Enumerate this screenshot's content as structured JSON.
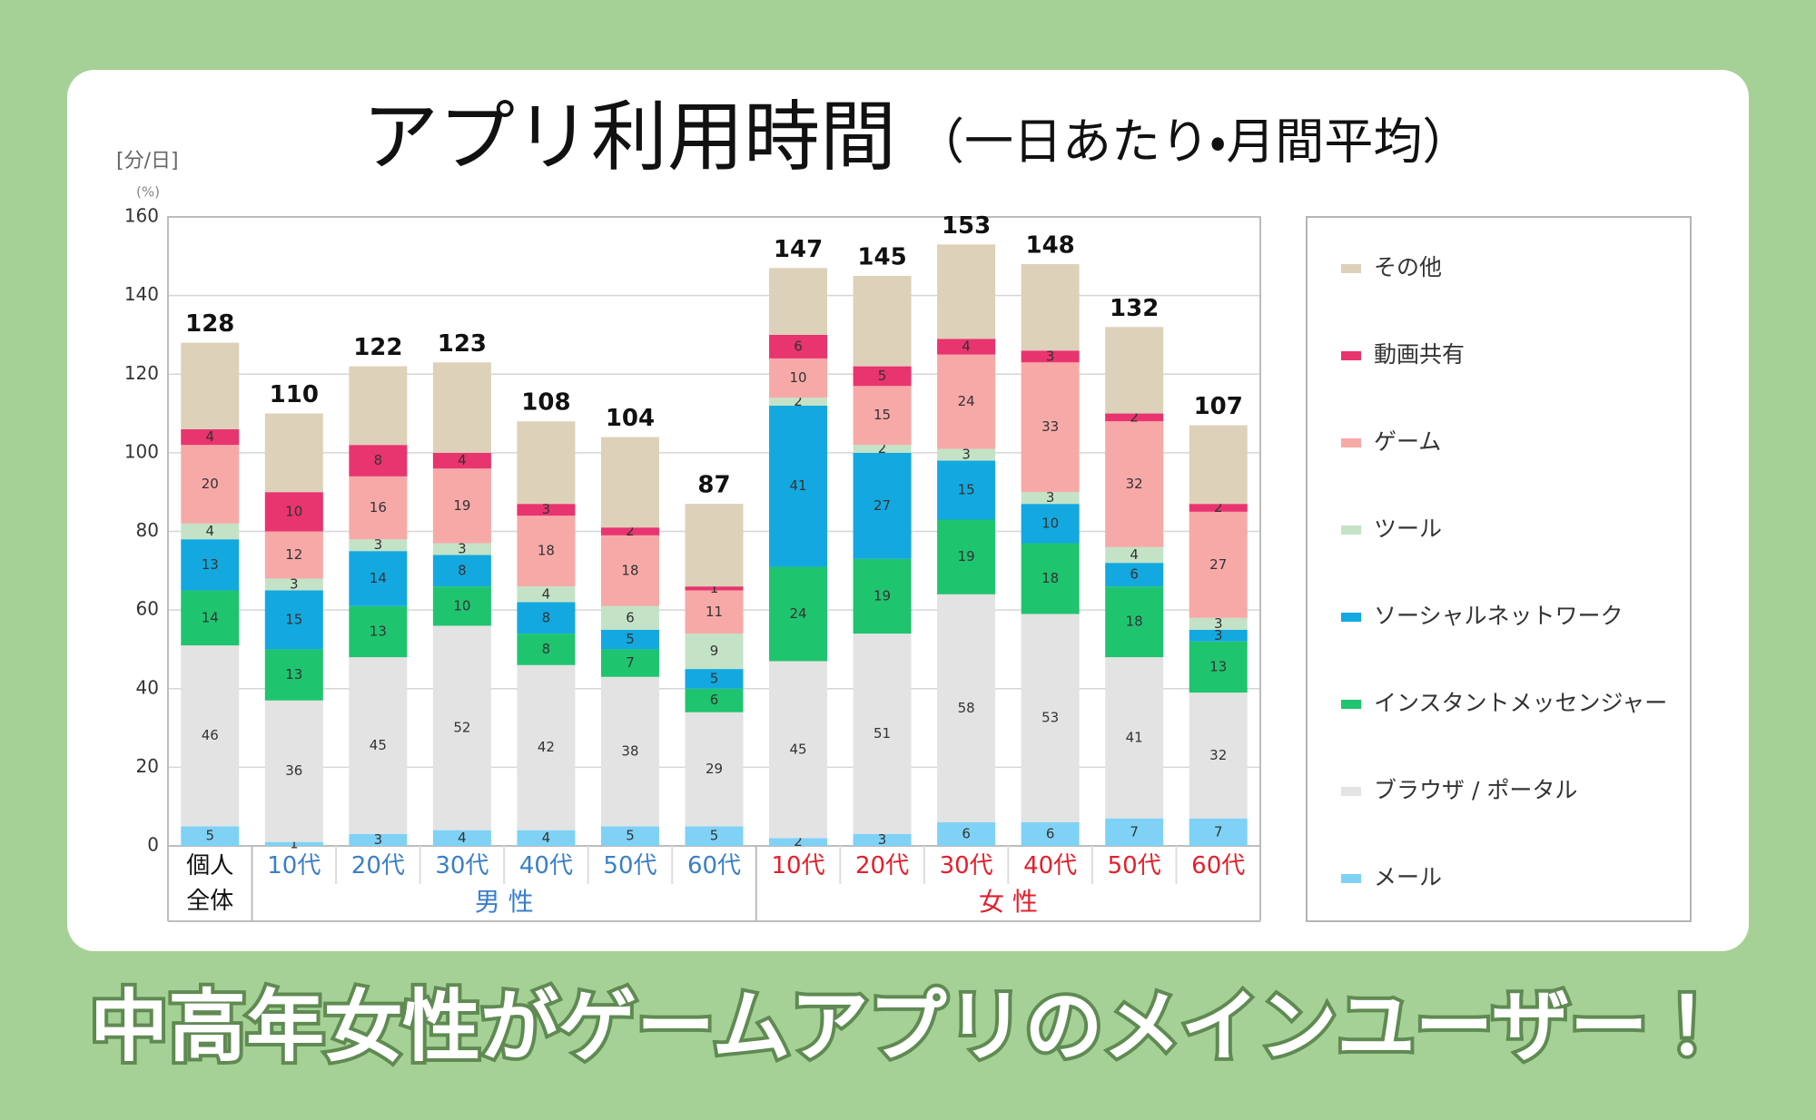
{
  "chart_data": {
    "type": "bar",
    "stacked": true,
    "title": "アプリ利用時間",
    "subtitle": "（一日あたり・月間平均）",
    "y_unit": "[分/日]",
    "y_unit_note": "(%)",
    "category_groups": [
      {
        "name": null,
        "color": "#111111",
        "categories": [
          "個人全体"
        ]
      },
      {
        "name": "男 性",
        "color": "#3a7fc8",
        "categories": [
          "10代",
          "20代",
          "30代",
          "40代",
          "50代",
          "60代"
        ]
      },
      {
        "name": "女 性",
        "color": "#e3202c",
        "categories": [
          "10代",
          "20代",
          "30代",
          "40代",
          "50代",
          "60代"
        ]
      }
    ],
    "series": [
      {
        "name": "メール",
        "color": "#7fd2f5",
        "show_labels": true,
        "values": [
          5,
          1,
          3,
          4,
          4,
          5,
          5,
          2,
          3,
          6,
          6,
          7,
          7
        ]
      },
      {
        "name": "ブラウザ / ポータル",
        "color": "#e3e3e3",
        "show_labels": true,
        "values": [
          46,
          36,
          45,
          52,
          42,
          38,
          29,
          45,
          51,
          58,
          53,
          41,
          32
        ]
      },
      {
        "name": "インスタントメッセンジャー",
        "color": "#1fc46f",
        "show_labels": true,
        "values": [
          14,
          13,
          13,
          10,
          8,
          7,
          6,
          24,
          19,
          19,
          18,
          18,
          13
        ]
      },
      {
        "name": "ソーシャルネットワーク",
        "color": "#13a8e0",
        "show_labels": true,
        "values": [
          13,
          15,
          14,
          8,
          8,
          5,
          5,
          41,
          27,
          15,
          10,
          6,
          3
        ]
      },
      {
        "name": "ツール",
        "color": "#c4e3c6",
        "show_labels": true,
        "values": [
          4,
          3,
          3,
          3,
          4,
          6,
          9,
          2,
          2,
          3,
          3,
          4,
          3
        ]
      },
      {
        "name": "ゲーム",
        "color": "#f7a9a8",
        "show_labels": true,
        "values": [
          20,
          12,
          16,
          19,
          18,
          18,
          11,
          10,
          15,
          24,
          33,
          32,
          27
        ]
      },
      {
        "name": "動画共有",
        "color": "#e8346f",
        "show_labels": true,
        "values": [
          4,
          10,
          8,
          4,
          3,
          2,
          1,
          6,
          5,
          4,
          3,
          2,
          2
        ]
      },
      {
        "name": "その他",
        "color": "#ddd1b9",
        "show_labels": false,
        "values": [
          22,
          20,
          20,
          23,
          21,
          23,
          21,
          17,
          23,
          24,
          22,
          22,
          20
        ]
      }
    ],
    "totals": [
      128,
      110,
      122,
      123,
      108,
      104,
      87,
      147,
      145,
      153,
      148,
      132,
      107
    ],
    "ylim": [
      0,
      160
    ],
    "yticks": [
      0,
      20,
      40,
      60,
      80,
      100,
      120,
      140,
      160
    ],
    "grid": true,
    "legend": "right"
  },
  "caption": "中高年女性がゲームアプリのメインユーザー！"
}
